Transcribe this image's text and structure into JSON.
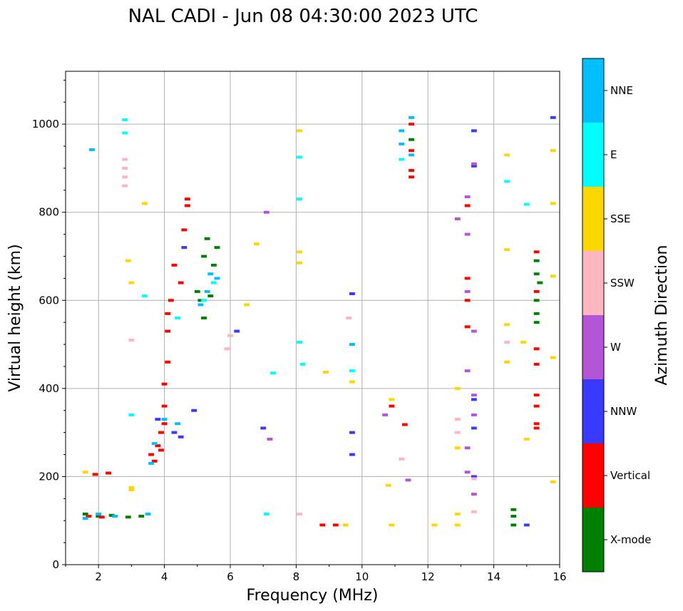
{
  "chart_data": {
    "type": "scatter",
    "title": "NAL CADI - Jun 08 04:30:00 2023 UTC",
    "xlabel": "Frequency (MHz)",
    "ylabel": "Virtual height (km)",
    "xlim": [
      1,
      16
    ],
    "ylim": [
      0,
      1120
    ],
    "xticks": [
      2,
      4,
      6,
      8,
      10,
      12,
      14,
      16
    ],
    "yticks": [
      0,
      200,
      400,
      600,
      800,
      1000
    ],
    "grid": true,
    "colorbar": {
      "label": "Azimuth Direction",
      "categories": [
        {
          "name": "X-mode",
          "color": "#008000"
        },
        {
          "name": "Vertical",
          "color": "#ff0000"
        },
        {
          "name": "NNW",
          "color": "#3a3aff"
        },
        {
          "name": "W",
          "color": "#b455d6"
        },
        {
          "name": "SSW",
          "color": "#ffb6c1"
        },
        {
          "name": "SSE",
          "color": "#ffd700"
        },
        {
          "name": "E",
          "color": "#00ffff"
        },
        {
          "name": "NNE",
          "color": "#00bfff"
        }
      ]
    },
    "series": [
      {
        "name": "X-mode",
        "color": "#008000",
        "points": [
          [
            1.6,
            115
          ],
          [
            2.0,
            110
          ],
          [
            2.4,
            112
          ],
          [
            2.9,
            108
          ],
          [
            3.3,
            110
          ],
          [
            5.0,
            620
          ],
          [
            5.1,
            600
          ],
          [
            5.2,
            700
          ],
          [
            5.3,
            740
          ],
          [
            5.4,
            610
          ],
          [
            5.5,
            680
          ],
          [
            5.2,
            560
          ],
          [
            5.6,
            720
          ],
          [
            11.5,
            965
          ],
          [
            14.6,
            90
          ],
          [
            14.6,
            110
          ],
          [
            14.6,
            125
          ],
          [
            15.3,
            690
          ],
          [
            15.3,
            660
          ],
          [
            15.4,
            640
          ],
          [
            15.3,
            570
          ],
          [
            15.3,
            550
          ],
          [
            15.3,
            600
          ]
        ]
      },
      {
        "name": "Vertical",
        "color": "#ff0000",
        "points": [
          [
            1.7,
            110
          ],
          [
            2.1,
            108
          ],
          [
            2.3,
            208
          ],
          [
            1.9,
            205
          ],
          [
            3.6,
            250
          ],
          [
            3.7,
            235
          ],
          [
            3.8,
            270
          ],
          [
            3.9,
            300
          ],
          [
            4.0,
            320
          ],
          [
            4.0,
            360
          ],
          [
            4.0,
            410
          ],
          [
            3.9,
            260
          ],
          [
            4.1,
            460
          ],
          [
            4.1,
            530
          ],
          [
            4.1,
            570
          ],
          [
            4.2,
            600
          ],
          [
            4.3,
            680
          ],
          [
            4.5,
            640
          ],
          [
            4.6,
            760
          ],
          [
            4.7,
            815
          ],
          [
            4.7,
            830
          ],
          [
            8.8,
            90
          ],
          [
            9.2,
            90
          ],
          [
            10.9,
            360
          ],
          [
            11.3,
            318
          ],
          [
            11.5,
            880
          ],
          [
            11.5,
            895
          ],
          [
            11.5,
            1000
          ],
          [
            11.5,
            940
          ],
          [
            13.2,
            540
          ],
          [
            13.2,
            600
          ],
          [
            13.2,
            650
          ],
          [
            13.2,
            815
          ],
          [
            15.3,
            320
          ],
          [
            15.3,
            360
          ],
          [
            15.3,
            385
          ],
          [
            15.3,
            490
          ],
          [
            15.3,
            455
          ],
          [
            15.3,
            620
          ],
          [
            15.3,
            710
          ],
          [
            15.3,
            310
          ]
        ]
      },
      {
        "name": "NNW",
        "color": "#3a3aff",
        "points": [
          [
            3.8,
            330
          ],
          [
            4.3,
            300
          ],
          [
            4.5,
            290
          ],
          [
            4.6,
            720
          ],
          [
            4.9,
            350
          ],
          [
            6.2,
            530
          ],
          [
            7.0,
            310
          ],
          [
            9.7,
            300
          ],
          [
            9.7,
            250
          ],
          [
            9.7,
            615
          ],
          [
            13.4,
            985
          ],
          [
            13.4,
            905
          ],
          [
            13.4,
            310
          ],
          [
            13.4,
            375
          ],
          [
            13.4,
            200
          ],
          [
            15.0,
            90
          ],
          [
            15.8,
            1015
          ]
        ]
      },
      {
        "name": "W",
        "color": "#b455d6",
        "points": [
          [
            7.1,
            800
          ],
          [
            7.2,
            285
          ],
          [
            10.7,
            340
          ],
          [
            11.4,
            192
          ],
          [
            12.9,
            785
          ],
          [
            13.2,
            835
          ],
          [
            13.2,
            440
          ],
          [
            13.2,
            265
          ],
          [
            13.2,
            210
          ],
          [
            13.4,
            530
          ],
          [
            13.4,
            385
          ],
          [
            13.4,
            340
          ],
          [
            13.4,
            160
          ],
          [
            13.4,
            910
          ],
          [
            13.2,
            750
          ],
          [
            13.2,
            620
          ]
        ]
      },
      {
        "name": "SSW",
        "color": "#ffb6c1",
        "points": [
          [
            2.8,
            900
          ],
          [
            2.8,
            880
          ],
          [
            2.8,
            860
          ],
          [
            2.8,
            920
          ],
          [
            3.0,
            510
          ],
          [
            5.9,
            490
          ],
          [
            6.0,
            520
          ],
          [
            9.6,
            560
          ],
          [
            11.2,
            240
          ],
          [
            12.9,
            330
          ],
          [
            12.9,
            300
          ],
          [
            13.4,
            120
          ],
          [
            13.4,
            195
          ],
          [
            14.4,
            505
          ],
          [
            8.1,
            115
          ]
        ]
      },
      {
        "name": "SSE",
        "color": "#ffd700",
        "points": [
          [
            1.6,
            210
          ],
          [
            3.0,
            170
          ],
          [
            3.0,
            175
          ],
          [
            3.4,
            820
          ],
          [
            2.9,
            690
          ],
          [
            3.0,
            640
          ],
          [
            6.5,
            590
          ],
          [
            6.8,
            728
          ],
          [
            8.1,
            985
          ],
          [
            8.1,
            710
          ],
          [
            8.1,
            685
          ],
          [
            8.9,
            437
          ],
          [
            9.5,
            90
          ],
          [
            9.7,
            415
          ],
          [
            10.8,
            180
          ],
          [
            10.9,
            90
          ],
          [
            10.9,
            375
          ],
          [
            12.2,
            90
          ],
          [
            12.9,
            400
          ],
          [
            12.9,
            265
          ],
          [
            12.9,
            115
          ],
          [
            12.9,
            90
          ],
          [
            14.4,
            930
          ],
          [
            14.4,
            715
          ],
          [
            14.4,
            545
          ],
          [
            14.4,
            460
          ],
          [
            14.9,
            505
          ],
          [
            15.0,
            285
          ],
          [
            15.8,
            940
          ],
          [
            15.8,
            820
          ],
          [
            15.8,
            655
          ],
          [
            15.8,
            470
          ],
          [
            15.8,
            188
          ]
        ]
      },
      {
        "name": "E",
        "color": "#00ffff",
        "points": [
          [
            2.8,
            1010
          ],
          [
            2.8,
            980
          ],
          [
            3.0,
            340
          ],
          [
            3.4,
            610
          ],
          [
            4.4,
            560
          ],
          [
            5.2,
            600
          ],
          [
            5.5,
            640
          ],
          [
            7.1,
            115
          ],
          [
            7.3,
            435
          ],
          [
            8.1,
            925
          ],
          [
            8.1,
            830
          ],
          [
            8.1,
            505
          ],
          [
            8.2,
            455
          ],
          [
            9.7,
            440
          ],
          [
            11.2,
            920
          ],
          [
            14.4,
            870
          ],
          [
            15.0,
            818
          ]
        ]
      },
      {
        "name": "NNE",
        "color": "#00bfff",
        "points": [
          [
            1.6,
            105
          ],
          [
            2.0,
            115
          ],
          [
            2.5,
            110
          ],
          [
            3.5,
            115
          ],
          [
            3.6,
            230
          ],
          [
            3.7,
            275
          ],
          [
            4.0,
            330
          ],
          [
            4.4,
            320
          ],
          [
            5.1,
            590
          ],
          [
            5.3,
            620
          ],
          [
            5.4,
            660
          ],
          [
            5.6,
            650
          ],
          [
            1.8,
            942
          ],
          [
            9.7,
            500
          ],
          [
            11.2,
            955
          ],
          [
            11.2,
            985
          ],
          [
            11.5,
            1015
          ],
          [
            11.5,
            930
          ]
        ]
      }
    ]
  }
}
